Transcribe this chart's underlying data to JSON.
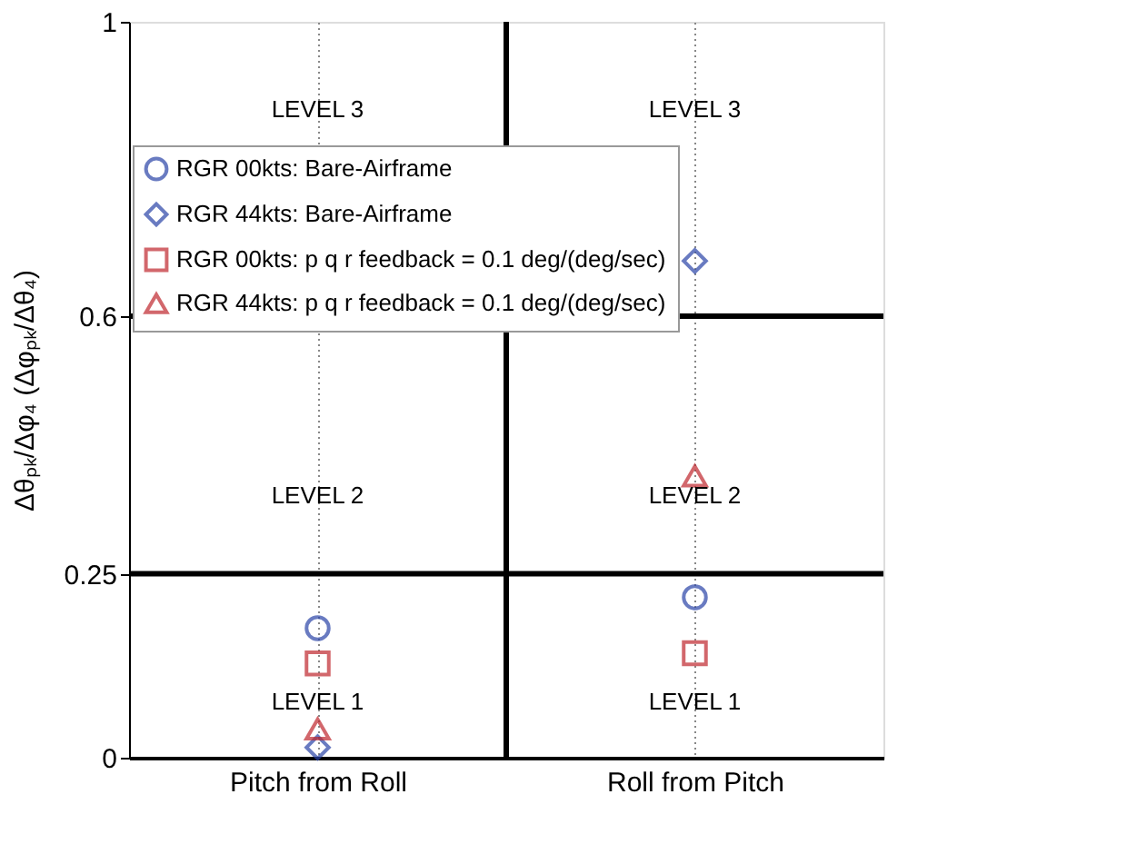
{
  "chart_data": {
    "type": "scatter",
    "ylabel": "Δθₚₖ/Δφ₄    (Δφₚₖ/Δθ₄)",
    "categories": [
      "Pitch from Roll",
      "Roll from Pitch"
    ],
    "series": [
      {
        "name": "RGR 00kts: Bare-Airframe",
        "color": "#2a44a8",
        "marker": "circle",
        "values": [
          0.176,
          0.218
        ]
      },
      {
        "name": "RGR 44kts: Bare-Airframe",
        "color": "#2a44a8",
        "marker": "diamond",
        "values": [
          0.014,
          0.675
        ]
      },
      {
        "name": "RGR 00kts: p q r feedback = 0.1 deg/(deg/sec)",
        "color": "#c0282e",
        "marker": "square",
        "values": [
          0.128,
          0.142
        ]
      },
      {
        "name": "RGR 44kts: p q r feedback = 0.1 deg/(deg/sec)",
        "color": "#c0282e",
        "marker": "triangle",
        "values": [
          0.039,
          0.383
        ]
      }
    ],
    "ylim": [
      0,
      1
    ],
    "yticks": [
      0,
      0.25,
      0.6,
      1
    ],
    "ref_lines": [
      {
        "axis": "y",
        "value": 0.25,
        "color": "#000000"
      },
      {
        "axis": "y",
        "value": 0.6,
        "color": "#000000"
      }
    ],
    "annotations": [
      "LEVEL 3",
      "LEVEL 3",
      "LEVEL 2",
      "LEVEL 2",
      "LEVEL 1",
      "LEVEL 1"
    ],
    "grid": "x",
    "legend": "top left"
  }
}
